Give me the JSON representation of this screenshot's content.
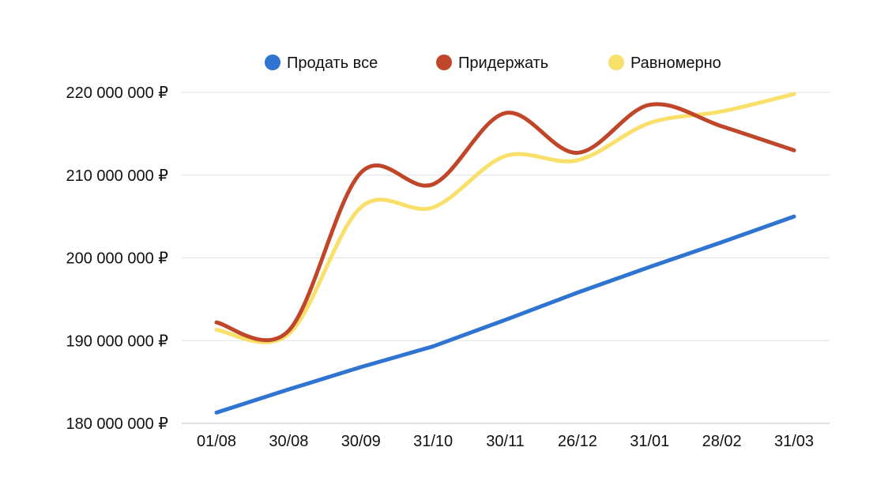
{
  "chart_data": {
    "type": "line",
    "title": "",
    "xlabel": "",
    "ylabel": "",
    "categories": [
      "01/08",
      "30/08",
      "30/09",
      "31/10",
      "30/11",
      "26/12",
      "31/01",
      "28/02",
      "31/03"
    ],
    "y_tick_labels": [
      "180 000 000 ₽",
      "190 000 000 ₽",
      "200 000 000 ₽",
      "210 000 000 ₽",
      "220 000 000 ₽"
    ],
    "y_ticks": [
      180000000,
      190000000,
      200000000,
      210000000,
      220000000
    ],
    "ylim": [
      180000000,
      220000000
    ],
    "grid": true,
    "legend_position": "top-center",
    "series": [
      {
        "name": "Продать все",
        "color": "#2f74d0",
        "smooth": false,
        "values": [
          181300000,
          184100000,
          186800000,
          189300000,
          192500000,
          195800000,
          198900000,
          201900000,
          205000000
        ]
      },
      {
        "name": "Придержать",
        "color": "#c0462a",
        "smooth": true,
        "values": [
          192200000,
          191200000,
          210300000,
          208900000,
          217500000,
          212700000,
          218500000,
          215900000,
          213000000
        ]
      },
      {
        "name": "Равномерно",
        "color": "#f8e06b",
        "smooth": true,
        "values": [
          191300000,
          190800000,
          206100000,
          206100000,
          212300000,
          211800000,
          216300000,
          217700000,
          219800000
        ]
      }
    ]
  }
}
